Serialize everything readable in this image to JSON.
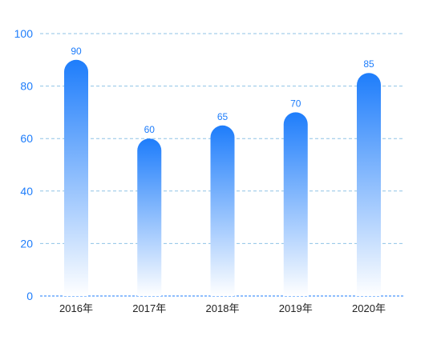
{
  "chart_data": {
    "type": "bar",
    "categories": [
      "2016年",
      "2017年",
      "2018年",
      "2019年",
      "2020年"
    ],
    "values": [
      90,
      60,
      65,
      70,
      85
    ],
    "ylim": [
      0,
      100
    ],
    "yticks": [
      0,
      20,
      40,
      60,
      80,
      100
    ],
    "grid": true,
    "data_labels": true,
    "bar_style": "rounded-top gradient"
  },
  "colors": {
    "bar_top": "#1e7dfb",
    "bar_bottom": "#ffffff",
    "data_label": "#1e7dfb",
    "y_tick_label": "#1e7dfb",
    "x_tick_label": "#222222",
    "grid": "#8fc3e6",
    "axis": "#1e7dfb"
  }
}
